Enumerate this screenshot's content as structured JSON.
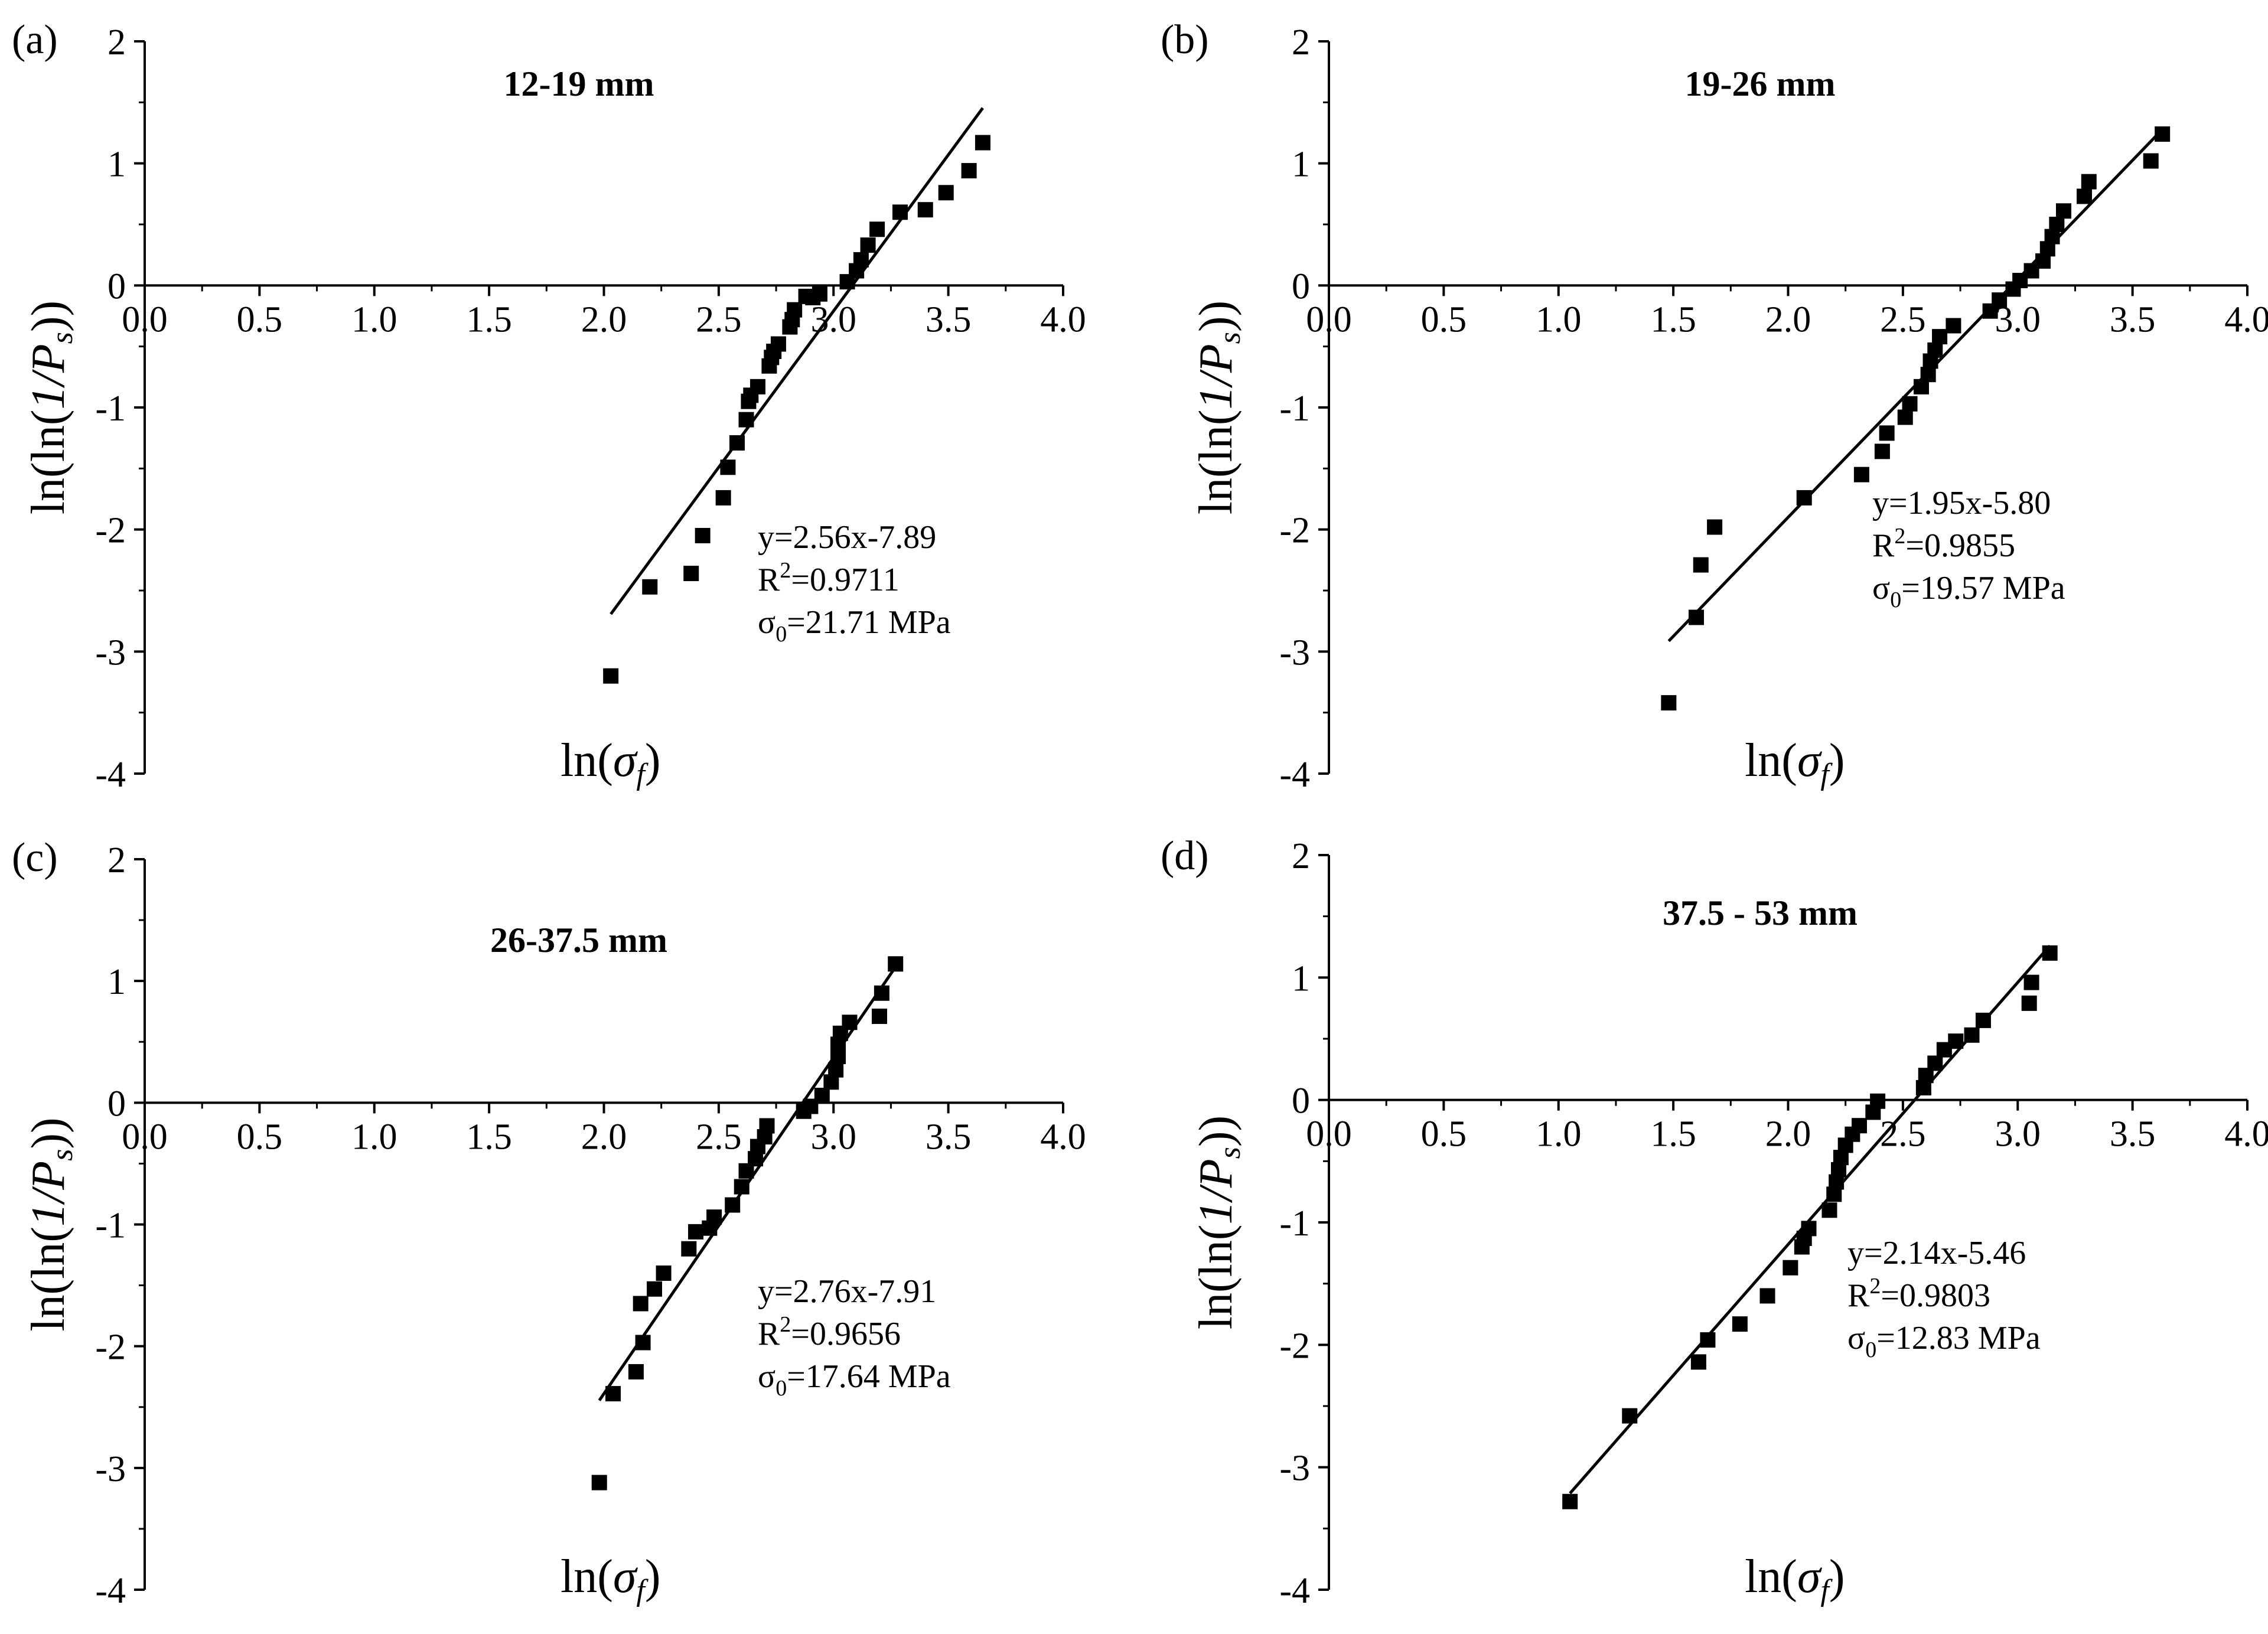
{
  "figure": {
    "panels": [
      {
        "panel_label": "(a)",
        "subtitle": "12-19 mm",
        "annotation": {
          "equation": "y=2.56x-7.89",
          "r2_prefix": "R",
          "r2_sup": "2",
          "r2_value": "=0.9711",
          "sigma_symbol": "σ",
          "sigma_sub": "0",
          "sigma_value": "=21.71 MPa"
        }
      },
      {
        "panel_label": "(b)",
        "subtitle": "19-26 mm",
        "annotation": {
          "equation": "y=1.95x-5.80",
          "r2_prefix": "R",
          "r2_sup": "2",
          "r2_value": "=0.9855",
          "sigma_symbol": "σ",
          "sigma_sub": "0",
          "sigma_value": "=19.57 MPa"
        }
      },
      {
        "panel_label": "(c)",
        "subtitle": "26-37.5 mm",
        "annotation": {
          "equation": "y=2.76x-7.91",
          "r2_prefix": "R",
          "r2_sup": "2",
          "r2_value": "=0.9656",
          "sigma_symbol": "σ",
          "sigma_sub": "0",
          "sigma_value": "=17.64 MPa"
        }
      },
      {
        "panel_label": "(d)",
        "subtitle": "37.5 - 53 mm",
        "annotation": {
          "equation": "y=2.14x-5.46",
          "r2_prefix": "R",
          "r2_sup": "2",
          "r2_value": "=0.9803",
          "sigma_symbol": "σ",
          "sigma_sub": "0",
          "sigma_value": "=12.83 MPa"
        }
      }
    ]
  },
  "chart_data": [
    {
      "type": "scatter",
      "title": "12-19 mm",
      "panel_label": "(a)",
      "xlabel": "ln(σf)",
      "ylabel": "ln(ln(1/Ps))",
      "xlim": [
        0,
        4
      ],
      "ylim": [
        -4,
        2
      ],
      "xticks": [
        "0.0",
        "0.5",
        "1.0",
        "1.5",
        "2.0",
        "2.5",
        "3.0",
        "3.5",
        "4.0"
      ],
      "yticks": [
        "2",
        "1",
        "0",
        "-1",
        "-2",
        "-3",
        "-4"
      ],
      "fit": {
        "slope": 2.56,
        "intercept": -7.89,
        "x_range": [
          2.03,
          3.65
        ]
      },
      "x": [
        2.03,
        2.2,
        2.38,
        2.43,
        2.52,
        2.54,
        2.58,
        2.62,
        2.63,
        2.64,
        2.67,
        2.72,
        2.73,
        2.74,
        2.76,
        2.81,
        2.82,
        2.83,
        2.88,
        2.91,
        2.94,
        3.06,
        3.1,
        3.12,
        3.15,
        3.19,
        3.29,
        3.4,
        3.49,
        3.59,
        3.65
      ],
      "y": [
        -3.2,
        -2.47,
        -2.36,
        -2.05,
        -1.74,
        -1.49,
        -1.29,
        -1.1,
        -0.95,
        -0.9,
        -0.83,
        -0.66,
        -0.59,
        -0.54,
        -0.48,
        -0.34,
        -0.28,
        -0.2,
        -0.09,
        -0.1,
        -0.07,
        0.03,
        0.12,
        0.21,
        0.33,
        0.46,
        0.6,
        0.62,
        0.76,
        0.94,
        1.17
      ]
    },
    {
      "type": "scatter",
      "title": "19-26 mm",
      "panel_label": "(b)",
      "xlabel": "ln(σf)",
      "ylabel": "ln(ln(1/Ps))",
      "xlim": [
        0,
        4
      ],
      "ylim": [
        -4,
        2
      ],
      "xticks": [
        "0.0",
        "0.5",
        "1.0",
        "1.5",
        "2.0",
        "2.5",
        "3.0",
        "3.5",
        "4.0"
      ],
      "yticks": [
        "2",
        "1",
        "0",
        "-1",
        "-2",
        "-3",
        "-4"
      ],
      "fit": {
        "slope": 1.95,
        "intercept": -5.8,
        "x_range": [
          1.48,
          3.63
        ]
      },
      "x": [
        1.48,
        1.6,
        1.62,
        1.68,
        2.07,
        2.32,
        2.41,
        2.43,
        2.51,
        2.53,
        2.58,
        2.61,
        2.62,
        2.64,
        2.66,
        2.72,
        2.88,
        2.92,
        2.98,
        3.01,
        3.06,
        3.11,
        3.13,
        3.15,
        3.17,
        3.2,
        3.29,
        3.31,
        3.58,
        3.63
      ],
      "y": [
        -3.42,
        -2.72,
        -2.29,
        -1.98,
        -1.74,
        -1.55,
        -1.36,
        -1.21,
        -1.08,
        -0.97,
        -0.83,
        -0.73,
        -0.62,
        -0.53,
        -0.42,
        -0.33,
        -0.21,
        -0.12,
        -0.03,
        0.04,
        0.12,
        0.2,
        0.3,
        0.4,
        0.5,
        0.61,
        0.73,
        0.85,
        1.02,
        1.24
      ]
    },
    {
      "type": "scatter",
      "title": "26-37.5 mm",
      "panel_label": "(c)",
      "xlabel": "ln(σf)",
      "ylabel": "ln(ln(1/Ps))",
      "xlim": [
        0,
        4
      ],
      "ylim": [
        -4,
        2
      ],
      "xticks": [
        "0.0",
        "0.5",
        "1.0",
        "1.5",
        "2.0",
        "2.5",
        "3.0",
        "3.5",
        "4.0"
      ],
      "yticks": [
        "2",
        "1",
        "0",
        "-1",
        "-2",
        "-3",
        "-4"
      ],
      "fit": {
        "slope": 2.76,
        "intercept": -7.91,
        "x_range": [
          1.98,
          3.27
        ]
      },
      "x": [
        1.98,
        2.04,
        2.14,
        2.16,
        2.17,
        2.22,
        2.26,
        2.37,
        2.4,
        2.46,
        2.48,
        2.56,
        2.6,
        2.62,
        2.66,
        2.67,
        2.7,
        2.71,
        2.87,
        2.9,
        2.95,
        2.99,
        3.01,
        3.02,
        3.02,
        3.03,
        3.07,
        3.2,
        3.21,
        3.27
      ],
      "y": [
        -3.12,
        -2.39,
        -2.21,
        -1.65,
        -1.97,
        -1.53,
        -1.4,
        -1.2,
        -1.06,
        -1.03,
        -0.94,
        -0.84,
        -0.69,
        -0.56,
        -0.46,
        -0.36,
        -0.28,
        -0.19,
        -0.07,
        -0.03,
        0.06,
        0.17,
        0.27,
        0.38,
        0.48,
        0.57,
        0.66,
        0.71,
        0.9,
        1.14
      ]
    },
    {
      "type": "scatter",
      "title": "37.5 - 53 mm",
      "panel_label": "(d)",
      "xlabel": "ln(σf)",
      "ylabel": "ln(ln(1/Ps))",
      "xlim": [
        0,
        4
      ],
      "ylim": [
        -4,
        2
      ],
      "xticks": [
        "0.0",
        "0.5",
        "1.0",
        "1.5",
        "2.0",
        "2.5",
        "3.0",
        "3.5",
        "4.0"
      ],
      "yticks": [
        "2",
        "1",
        "0",
        "-1",
        "-2",
        "-3",
        "-4"
      ],
      "fit": {
        "slope": 2.14,
        "intercept": -5.46,
        "x_range": [
          1.05,
          3.14
        ]
      },
      "x": [
        1.05,
        1.31,
        1.61,
        1.65,
        1.79,
        1.91,
        2.01,
        2.06,
        2.07,
        2.09,
        2.18,
        2.2,
        2.21,
        2.22,
        2.23,
        2.25,
        2.28,
        2.31,
        2.37,
        2.39,
        2.59,
        2.6,
        2.64,
        2.68,
        2.73,
        2.8,
        2.85,
        3.05,
        3.06,
        3.14
      ],
      "y": [
        -3.28,
        -2.58,
        -2.14,
        -1.96,
        -1.83,
        -1.6,
        -1.37,
        -1.2,
        -1.13,
        -1.05,
        -0.9,
        -0.77,
        -0.67,
        -0.57,
        -0.47,
        -0.37,
        -0.28,
        -0.21,
        -0.1,
        -0.01,
        0.1,
        0.2,
        0.3,
        0.41,
        0.48,
        0.53,
        0.65,
        0.79,
        0.96,
        1.2
      ]
    }
  ]
}
